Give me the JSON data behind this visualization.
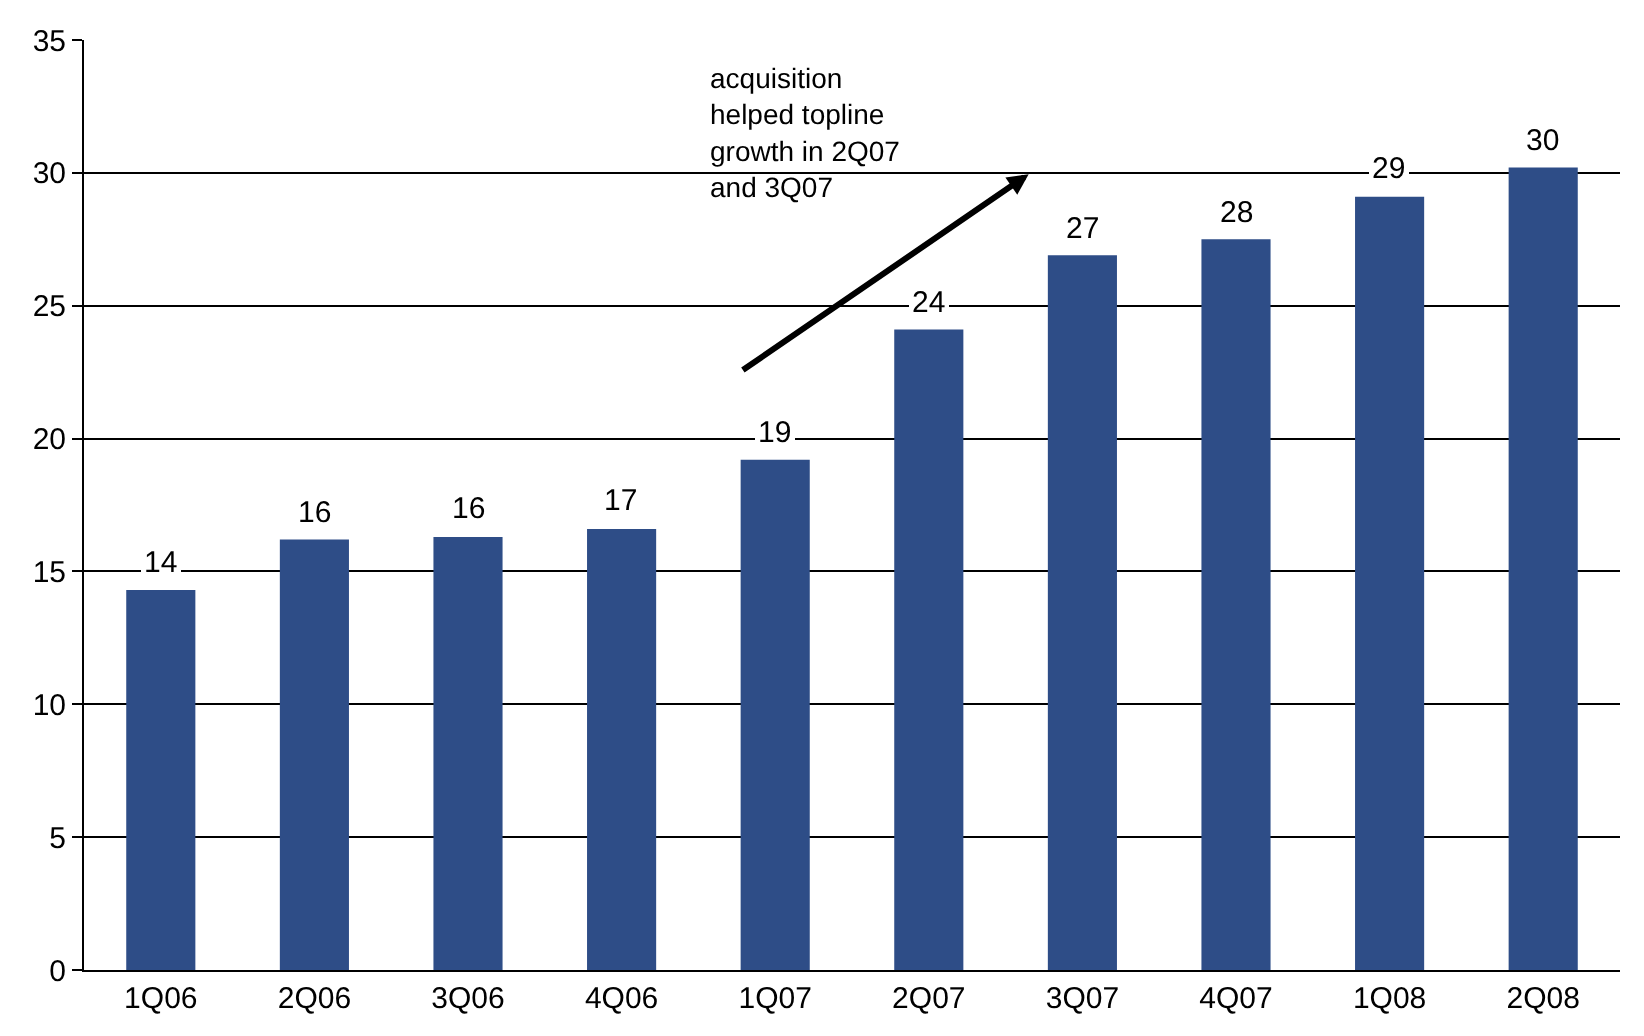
{
  "chart_data": {
    "type": "bar",
    "categories": [
      "1Q06",
      "2Q06",
      "3Q06",
      "4Q06",
      "1Q07",
      "2Q07",
      "3Q07",
      "4Q07",
      "1Q08",
      "2Q08"
    ],
    "values": [
      14.3,
      16.2,
      16.3,
      16.6,
      19.2,
      24.1,
      26.9,
      27.5,
      29.1,
      30.2
    ],
    "value_labels": [
      "14",
      "16",
      "16",
      "17",
      "19",
      "24",
      "27",
      "28",
      "29",
      "30"
    ],
    "color": "#2e4d87",
    "ylim": [
      0,
      35
    ],
    "yticks": [
      0,
      5,
      10,
      15,
      20,
      25,
      30,
      35
    ],
    "grid": "y",
    "legend": false,
    "annotations": [
      "acquisition helped topline growth in 2Q07 and 3Q07"
    ]
  }
}
